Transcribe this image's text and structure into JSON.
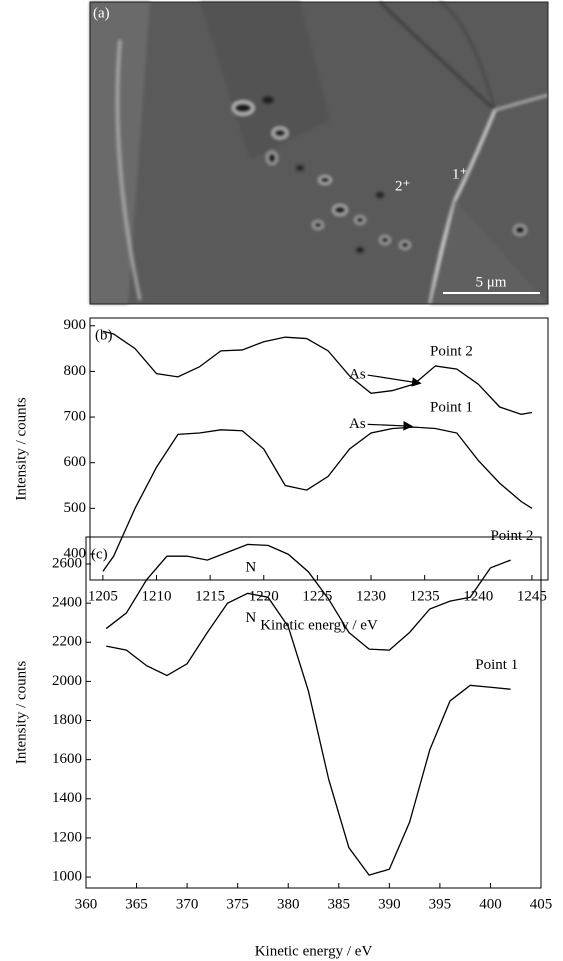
{
  "image": {
    "panel_label": "(a)",
    "point_labels": [
      "2⁺",
      "1⁺"
    ],
    "scale_bar": "5 μm"
  },
  "chart_data": [
    {
      "type": "line",
      "panel_label": "(b)",
      "x_label": "Kinetic energy / eV",
      "y_label": "Intensity / counts",
      "x": [
        1205,
        1206,
        1208,
        1210,
        1212,
        1214,
        1216,
        1218,
        1220,
        1222,
        1224,
        1226,
        1228,
        1230,
        1232,
        1234,
        1236,
        1238,
        1240,
        1242,
        1244,
        1245
      ],
      "series": [
        {
          "name": "Point 2",
          "color": "#000000",
          "values": [
            888,
            882,
            850,
            795,
            788,
            810,
            845,
            847,
            865,
            875,
            872,
            845,
            790,
            752,
            758,
            772,
            812,
            805,
            772,
            722,
            706,
            710
          ]
        },
        {
          "name": "Point 1",
          "color": "#000000",
          "values": [
            362,
            395,
            500,
            590,
            662,
            665,
            672,
            670,
            630,
            550,
            540,
            570,
            630,
            665,
            675,
            678,
            675,
            665,
            605,
            555,
            515,
            500
          ]
        }
      ],
      "annotations": [
        "As",
        "As"
      ],
      "xlim": [
        1203.8,
        1246.5
      ],
      "xticks": [
        1205,
        1210,
        1215,
        1220,
        1225,
        1230,
        1235,
        1240,
        1245
      ],
      "ylim": [
        343,
        917
      ],
      "yticks": [
        400,
        500,
        600,
        700,
        800,
        900
      ]
    },
    {
      "type": "line",
      "panel_label": "(c)",
      "x_label": "Kinetic energy / eV",
      "y_label": "Intensity / counts",
      "x": [
        362,
        364,
        366,
        368,
        370,
        372,
        374,
        376,
        378,
        380,
        382,
        384,
        386,
        388,
        390,
        392,
        394,
        396,
        398,
        400,
        402
      ],
      "series": [
        {
          "name": "Point 2",
          "color": "#000000",
          "values": [
            2270,
            2350,
            2520,
            2640,
            2640,
            2620,
            2660,
            2700,
            2695,
            2650,
            2560,
            2420,
            2250,
            2165,
            2160,
            2250,
            2370,
            2410,
            2430,
            2580,
            2620
          ]
        },
        {
          "name": "Point 1",
          "color": "#000000",
          "values": [
            2180,
            2160,
            2080,
            2030,
            2090,
            2250,
            2400,
            2450,
            2430,
            2280,
            1950,
            1500,
            1150,
            1010,
            1040,
            1280,
            1650,
            1900,
            1980,
            1970,
            1960
          ]
        }
      ],
      "annotations": [
        "N",
        "N"
      ],
      "xlim": [
        360,
        405
      ],
      "xticks": [
        360,
        365,
        370,
        375,
        380,
        385,
        390,
        395,
        400,
        405
      ],
      "ylim": [
        944,
        2738
      ],
      "yticks": [
        1000,
        1200,
        1400,
        1600,
        1800,
        2000,
        2200,
        2400,
        2600
      ]
    }
  ]
}
